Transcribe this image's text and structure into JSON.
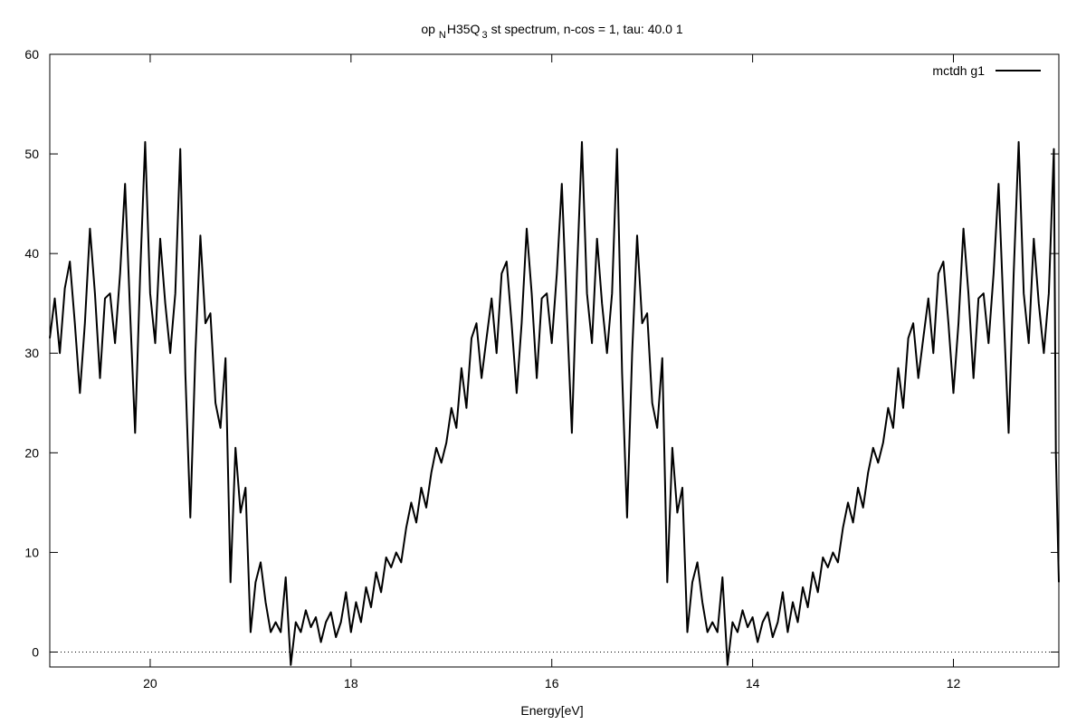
{
  "chart_data": {
    "type": "line",
    "title": {
      "prefix": "op",
      "sub1": "N",
      "mid": "H35Q",
      "sub2": "3",
      "suffix": "st spectrum, n-cos = 1, tau: 40.0 1"
    },
    "xlabel": "Energy[eV]",
    "ylabel": "",
    "x_reversed": true,
    "xlim": [
      21.0,
      10.95
    ],
    "ylim": [
      -1.5,
      60
    ],
    "xticks": [
      20,
      18,
      16,
      14,
      12
    ],
    "yticks": [
      0,
      10,
      20,
      30,
      40,
      50,
      60
    ],
    "zero_line": true,
    "legend": {
      "position": "top-right",
      "entries": [
        "mctdh g1"
      ]
    },
    "colors": {
      "line": "#000000",
      "axis": "#000000"
    },
    "series": [
      {
        "name": "mctdh g1",
        "points": [
          [
            21.0,
            31.5
          ],
          [
            20.95,
            35.5
          ],
          [
            20.9,
            30.0
          ],
          [
            20.85,
            36.5
          ],
          [
            20.8,
            39.2
          ],
          [
            20.75,
            33.0
          ],
          [
            20.7,
            26.0
          ],
          [
            20.65,
            33.0
          ],
          [
            20.6,
            42.5
          ],
          [
            20.55,
            36.0
          ],
          [
            20.5,
            27.5
          ],
          [
            20.45,
            35.5
          ],
          [
            20.4,
            36.0
          ],
          [
            20.35,
            31.0
          ],
          [
            20.3,
            38.0
          ],
          [
            20.25,
            47.0
          ],
          [
            20.2,
            34.0
          ],
          [
            20.15,
            22.0
          ],
          [
            20.1,
            38.0
          ],
          [
            20.05,
            51.2
          ],
          [
            20.0,
            36.0
          ],
          [
            19.95,
            31.0
          ],
          [
            19.9,
            41.5
          ],
          [
            19.85,
            35.0
          ],
          [
            19.8,
            30.0
          ],
          [
            19.75,
            36.0
          ],
          [
            19.7,
            50.5
          ],
          [
            19.65,
            28.0
          ],
          [
            19.6,
            13.5
          ],
          [
            19.55,
            30.0
          ],
          [
            19.5,
            41.8
          ],
          [
            19.45,
            33.0
          ],
          [
            19.4,
            34.0
          ],
          [
            19.35,
            25.0
          ],
          [
            19.3,
            22.5
          ],
          [
            19.25,
            29.5
          ],
          [
            19.2,
            7.0
          ],
          [
            19.15,
            20.5
          ],
          [
            19.1,
            14.0
          ],
          [
            19.05,
            16.5
          ],
          [
            19.0,
            2.0
          ],
          [
            18.95,
            7.0
          ],
          [
            18.9,
            9.0
          ],
          [
            18.85,
            5.0
          ],
          [
            18.8,
            2.0
          ],
          [
            18.75,
            3.0
          ],
          [
            18.7,
            2.0
          ],
          [
            18.65,
            7.5
          ],
          [
            18.6,
            -1.3
          ],
          [
            18.55,
            3.0
          ],
          [
            18.5,
            2.0
          ],
          [
            18.45,
            4.2
          ],
          [
            18.4,
            2.5
          ],
          [
            18.35,
            3.5
          ],
          [
            18.3,
            1.0
          ],
          [
            18.25,
            3.0
          ],
          [
            18.2,
            4.0
          ],
          [
            18.15,
            1.5
          ],
          [
            18.1,
            3.0
          ],
          [
            18.05,
            6.0
          ],
          [
            18.0,
            2.0
          ],
          [
            17.95,
            5.0
          ],
          [
            17.9,
            3.0
          ],
          [
            17.85,
            6.5
          ],
          [
            17.8,
            4.5
          ],
          [
            17.75,
            8.0
          ],
          [
            17.7,
            6.0
          ],
          [
            17.65,
            9.5
          ],
          [
            17.6,
            8.5
          ],
          [
            17.55,
            10.0
          ],
          [
            17.5,
            9.0
          ],
          [
            17.45,
            12.5
          ],
          [
            17.4,
            15.0
          ],
          [
            17.35,
            13.0
          ],
          [
            17.3,
            16.5
          ],
          [
            17.25,
            14.5
          ],
          [
            17.2,
            18.0
          ],
          [
            17.15,
            20.5
          ],
          [
            17.1,
            19.0
          ],
          [
            17.05,
            21.0
          ],
          [
            17.0,
            24.5
          ],
          [
            16.95,
            22.5
          ],
          [
            16.9,
            28.5
          ],
          [
            16.85,
            24.5
          ],
          [
            16.8,
            31.5
          ],
          [
            16.75,
            33.0
          ],
          [
            16.7,
            27.5
          ],
          [
            16.65,
            31.5
          ],
          [
            16.6,
            35.5
          ],
          [
            16.55,
            30.0
          ],
          [
            16.5,
            38.0
          ],
          [
            16.45,
            39.2
          ],
          [
            16.4,
            33.0
          ],
          [
            16.35,
            26.0
          ],
          [
            16.3,
            33.0
          ],
          [
            16.25,
            42.5
          ],
          [
            16.2,
            36.0
          ],
          [
            16.15,
            27.5
          ],
          [
            16.1,
            35.5
          ],
          [
            16.05,
            36.0
          ],
          [
            16.0,
            31.0
          ],
          [
            15.95,
            38.0
          ],
          [
            15.9,
            47.0
          ],
          [
            15.85,
            34.0
          ],
          [
            15.8,
            22.0
          ],
          [
            15.75,
            38.0
          ],
          [
            15.7,
            51.2
          ],
          [
            15.65,
            36.0
          ],
          [
            15.6,
            31.0
          ],
          [
            15.55,
            41.5
          ],
          [
            15.5,
            35.0
          ],
          [
            15.45,
            30.0
          ],
          [
            15.4,
            36.0
          ],
          [
            15.35,
            50.5
          ],
          [
            15.3,
            28.0
          ],
          [
            15.25,
            13.5
          ],
          [
            15.2,
            30.0
          ],
          [
            15.15,
            41.8
          ],
          [
            15.1,
            33.0
          ],
          [
            15.05,
            34.0
          ],
          [
            15.0,
            25.0
          ],
          [
            14.95,
            22.5
          ],
          [
            14.9,
            29.5
          ],
          [
            14.85,
            7.0
          ],
          [
            14.8,
            20.5
          ],
          [
            14.75,
            14.0
          ],
          [
            14.7,
            16.5
          ],
          [
            14.65,
            2.0
          ],
          [
            14.6,
            7.0
          ],
          [
            14.55,
            9.0
          ],
          [
            14.5,
            5.0
          ],
          [
            14.45,
            2.0
          ],
          [
            14.4,
            3.0
          ],
          [
            14.35,
            2.0
          ],
          [
            14.3,
            7.5
          ],
          [
            14.25,
            -1.3
          ],
          [
            14.2,
            3.0
          ],
          [
            14.15,
            2.0
          ],
          [
            14.1,
            4.2
          ],
          [
            14.05,
            2.5
          ],
          [
            14.0,
            3.5
          ],
          [
            13.95,
            1.0
          ],
          [
            13.9,
            3.0
          ],
          [
            13.85,
            4.0
          ],
          [
            13.8,
            1.5
          ],
          [
            13.75,
            3.0
          ],
          [
            13.7,
            6.0
          ],
          [
            13.65,
            2.0
          ],
          [
            13.6,
            5.0
          ],
          [
            13.55,
            3.0
          ],
          [
            13.5,
            6.5
          ],
          [
            13.45,
            4.5
          ],
          [
            13.4,
            8.0
          ],
          [
            13.35,
            6.0
          ],
          [
            13.3,
            9.5
          ],
          [
            13.25,
            8.5
          ],
          [
            13.2,
            10.0
          ],
          [
            13.15,
            9.0
          ],
          [
            13.1,
            12.5
          ],
          [
            13.05,
            15.0
          ],
          [
            13.0,
            13.0
          ],
          [
            12.95,
            16.5
          ],
          [
            12.9,
            14.5
          ],
          [
            12.85,
            18.0
          ],
          [
            12.8,
            20.5
          ],
          [
            12.75,
            19.0
          ],
          [
            12.7,
            21.0
          ],
          [
            12.65,
            24.5
          ],
          [
            12.6,
            22.5
          ],
          [
            12.55,
            28.5
          ],
          [
            12.5,
            24.5
          ],
          [
            12.45,
            31.5
          ],
          [
            12.4,
            33.0
          ],
          [
            12.35,
            27.5
          ],
          [
            12.3,
            31.5
          ],
          [
            12.25,
            35.5
          ],
          [
            12.2,
            30.0
          ],
          [
            12.15,
            38.0
          ],
          [
            12.1,
            39.2
          ],
          [
            12.05,
            33.0
          ],
          [
            12.0,
            26.0
          ],
          [
            11.95,
            33.0
          ],
          [
            11.9,
            42.5
          ],
          [
            11.85,
            36.0
          ],
          [
            11.8,
            27.5
          ],
          [
            11.75,
            35.5
          ],
          [
            11.7,
            36.0
          ],
          [
            11.65,
            31.0
          ],
          [
            11.6,
            38.0
          ],
          [
            11.55,
            47.0
          ],
          [
            11.5,
            34.0
          ],
          [
            11.45,
            22.0
          ],
          [
            11.4,
            38.0
          ],
          [
            11.35,
            51.2
          ],
          [
            11.3,
            36.0
          ],
          [
            11.25,
            31.0
          ],
          [
            11.2,
            41.5
          ],
          [
            11.15,
            35.0
          ],
          [
            11.1,
            30.0
          ],
          [
            11.05,
            36.0
          ],
          [
            11.0,
            50.5
          ],
          [
            10.98,
            20.0
          ],
          [
            10.95,
            7.0
          ]
        ]
      }
    ]
  }
}
